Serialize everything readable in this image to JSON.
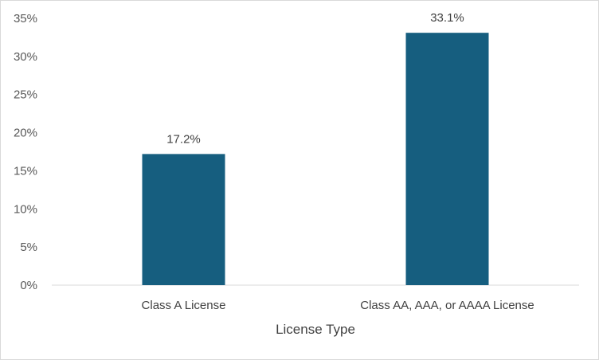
{
  "colors": {
    "bar": "#165e7f",
    "axis": "#d9d9d9",
    "tick_text": "#595959",
    "label_text": "#404040"
  },
  "chart_data": {
    "type": "bar",
    "title": "",
    "xlabel": "License Type",
    "ylabel": "",
    "categories": [
      "Class A License",
      "Class AA, AAA, or AAAA License"
    ],
    "values": [
      17.2,
      33.1
    ],
    "data_labels": [
      "17.2%",
      "33.1%"
    ],
    "ylim": [
      0,
      35
    ],
    "yticks": [
      0,
      5,
      10,
      15,
      20,
      25,
      30,
      35
    ],
    "ytick_labels": [
      "0%",
      "5%",
      "10%",
      "15%",
      "20%",
      "25%",
      "30%",
      "35%"
    ],
    "grid": false,
    "legend": "none"
  }
}
